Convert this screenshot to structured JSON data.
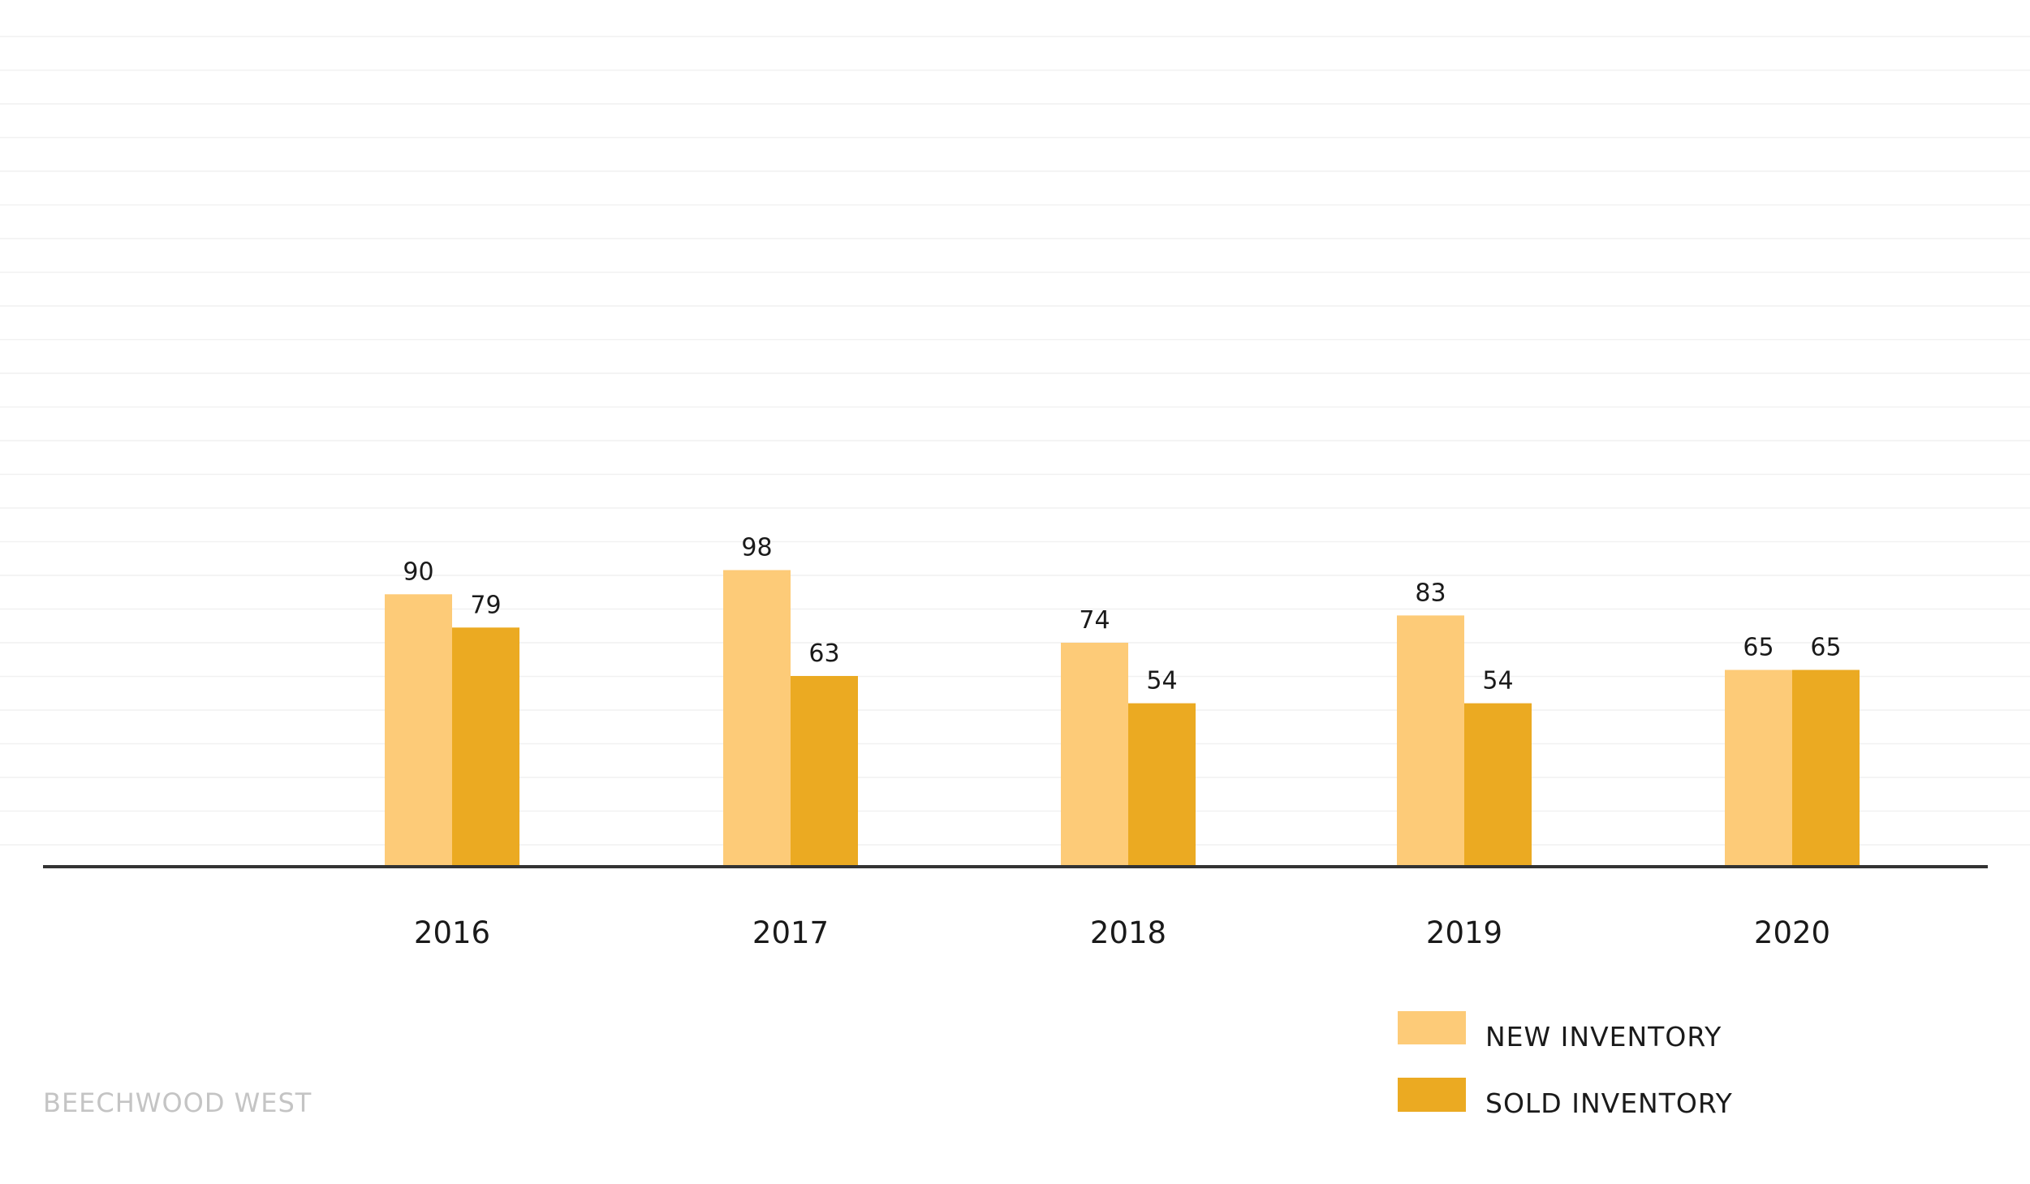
{
  "brand": "BEECHWOOD WEST",
  "colors": {
    "new_inventory": "#FDCB78",
    "sold_inventory": "#EBAA22",
    "axis": "#333333",
    "grid": "#F1F1F1"
  },
  "chart_data": {
    "type": "bar",
    "categories": [
      "2016",
      "2017",
      "2018",
      "2019",
      "2020"
    ],
    "series": [
      {
        "name": "NEW INVENTORY",
        "values": [
          90,
          98,
          74,
          83,
          65
        ]
      },
      {
        "name": "SOLD INVENTORY",
        "values": [
          79,
          63,
          54,
          54,
          65
        ]
      }
    ],
    "ylim": [
      0,
      250
    ],
    "grid": true,
    "legend_position": "bottom-right",
    "data_labels": true
  }
}
